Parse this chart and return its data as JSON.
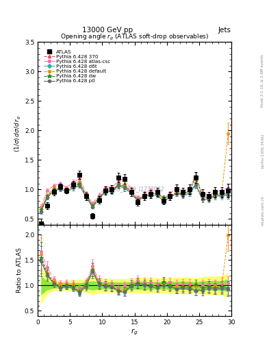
{
  "title": "13000 GeV pp",
  "title_right": "Jets",
  "plot_title": "Opening angle $r_g$ (ATLAS soft-drop observables)",
  "ylabel_main": "(1/σ) dσ/d r_{g}",
  "ylabel_ratio": "Ratio to ATLAS",
  "xlabel": "r_{g}",
  "watermark": "ATLAS_2019_I1772062",
  "rivet_label": "Rivet 3.1.10, ≥ 2.6M events",
  "arxiv_label": "[arXiv:1306.3436]",
  "mcplots_label": "mcplots.cern.ch",
  "xlim": [
    0,
    30
  ],
  "ylim_main": [
    0.4,
    3.5
  ],
  "ylim_ratio": [
    0.4,
    2.2
  ],
  "x_ticks": [
    0,
    5,
    10,
    15,
    20,
    25,
    30
  ],
  "series": {
    "ATLAS": {
      "x": [
        0.5,
        1.5,
        2.5,
        3.5,
        4.5,
        5.5,
        6.5,
        7.5,
        8.5,
        9.5,
        10.5,
        11.5,
        12.5,
        13.5,
        14.5,
        15.5,
        16.5,
        17.5,
        18.5,
        19.5,
        20.5,
        21.5,
        22.5,
        23.5,
        24.5,
        25.5,
        26.5,
        27.5,
        28.5,
        29.5
      ],
      "y": [
        0.42,
        0.72,
        0.95,
        1.05,
        0.98,
        1.08,
        1.25,
        0.88,
        0.55,
        0.82,
        0.98,
        1.0,
        1.2,
        1.18,
        0.95,
        0.78,
        0.88,
        0.92,
        0.95,
        0.8,
        0.88,
        1.0,
        0.95,
        1.0,
        1.2,
        0.92,
        0.88,
        0.95,
        0.95,
        0.98
      ],
      "yerr": [
        0.08,
        0.06,
        0.05,
        0.05,
        0.05,
        0.06,
        0.07,
        0.06,
        0.05,
        0.06,
        0.07,
        0.07,
        0.08,
        0.08,
        0.07,
        0.06,
        0.07,
        0.07,
        0.07,
        0.06,
        0.07,
        0.08,
        0.08,
        0.08,
        0.09,
        0.08,
        0.08,
        0.09,
        0.09,
        0.12
      ],
      "color": "#000000",
      "marker": "s",
      "markersize": 4,
      "linestyle": "none",
      "label": "ATLAS"
    },
    "Pythia 6.428 370": {
      "x": [
        0.5,
        1.5,
        2.5,
        3.5,
        4.5,
        5.5,
        6.5,
        7.5,
        8.5,
        9.5,
        10.5,
        11.5,
        12.5,
        13.5,
        14.5,
        15.5,
        16.5,
        17.5,
        18.5,
        19.5,
        20.5,
        21.5,
        22.5,
        23.5,
        24.5,
        25.5,
        26.5,
        27.5,
        28.5,
        29.5
      ],
      "y": [
        0.65,
        0.88,
        1.0,
        1.02,
        0.98,
        1.05,
        1.1,
        0.9,
        0.72,
        0.86,
        0.98,
        0.98,
        1.08,
        1.05,
        0.96,
        0.82,
        0.9,
        0.93,
        0.93,
        0.85,
        0.88,
        0.95,
        0.93,
        0.96,
        1.08,
        0.86,
        0.86,
        0.9,
        0.9,
        0.93
      ],
      "yerr": [
        0.04,
        0.03,
        0.03,
        0.03,
        0.03,
        0.04,
        0.04,
        0.03,
        0.03,
        0.04,
        0.04,
        0.04,
        0.05,
        0.05,
        0.04,
        0.04,
        0.04,
        0.04,
        0.04,
        0.04,
        0.04,
        0.05,
        0.05,
        0.05,
        0.05,
        0.05,
        0.05,
        0.05,
        0.05,
        0.06
      ],
      "color": "#e8474c",
      "marker": "^",
      "markersize": 3,
      "linestyle": "--",
      "label": "Pythia 6.428 370"
    },
    "Pythia 6.428 atlas-csc": {
      "x": [
        0.5,
        1.5,
        2.5,
        3.5,
        4.5,
        5.5,
        6.5,
        7.5,
        8.5,
        9.5,
        10.5,
        11.5,
        12.5,
        13.5,
        14.5,
        15.5,
        16.5,
        17.5,
        18.5,
        19.5,
        20.5,
        21.5,
        22.5,
        23.5,
        24.5,
        25.5,
        26.5,
        27.5,
        28.5,
        29.5
      ],
      "y": [
        0.7,
        0.98,
        1.06,
        1.1,
        1.03,
        1.12,
        1.18,
        0.93,
        0.76,
        0.9,
        1.02,
        1.02,
        1.15,
        1.18,
        1.0,
        0.86,
        0.93,
        0.98,
        0.98,
        0.83,
        0.93,
        1.02,
        0.98,
        1.03,
        1.22,
        0.93,
        0.9,
        0.96,
        0.98,
        1.02
      ],
      "yerr": [
        0.04,
        0.03,
        0.03,
        0.03,
        0.03,
        0.04,
        0.04,
        0.04,
        0.03,
        0.04,
        0.04,
        0.04,
        0.05,
        0.05,
        0.04,
        0.04,
        0.04,
        0.04,
        0.04,
        0.04,
        0.04,
        0.05,
        0.05,
        0.05,
        0.06,
        0.05,
        0.05,
        0.05,
        0.06,
        0.06
      ],
      "color": "#ff69b4",
      "marker": "o",
      "markersize": 3,
      "linestyle": "-.",
      "label": "Pythia 6.428 atlas-csc"
    },
    "Pythia 6.428 d6t": {
      "x": [
        0.5,
        1.5,
        2.5,
        3.5,
        4.5,
        5.5,
        6.5,
        7.5,
        8.5,
        9.5,
        10.5,
        11.5,
        12.5,
        13.5,
        14.5,
        15.5,
        16.5,
        17.5,
        18.5,
        19.5,
        20.5,
        21.5,
        22.5,
        23.5,
        24.5,
        25.5,
        26.5,
        27.5,
        28.5,
        29.5
      ],
      "y": [
        0.62,
        0.86,
        0.98,
        1.0,
        0.96,
        1.02,
        1.08,
        0.88,
        0.7,
        0.83,
        0.96,
        0.96,
        1.06,
        1.02,
        0.93,
        0.8,
        0.88,
        0.9,
        0.9,
        0.8,
        0.86,
        0.93,
        0.9,
        0.93,
        1.06,
        0.83,
        0.83,
        0.88,
        0.88,
        0.9
      ],
      "yerr": [
        0.04,
        0.03,
        0.03,
        0.03,
        0.03,
        0.04,
        0.04,
        0.03,
        0.03,
        0.04,
        0.04,
        0.04,
        0.05,
        0.05,
        0.04,
        0.04,
        0.04,
        0.04,
        0.04,
        0.04,
        0.04,
        0.05,
        0.05,
        0.05,
        0.05,
        0.05,
        0.05,
        0.05,
        0.05,
        0.06
      ],
      "color": "#20b2aa",
      "marker": "D",
      "markersize": 3,
      "linestyle": "--",
      "label": "Pythia 6.428 d6t"
    },
    "Pythia 6.428 default": {
      "x": [
        0.5,
        1.5,
        2.5,
        3.5,
        4.5,
        5.5,
        6.5,
        7.5,
        8.5,
        9.5,
        10.5,
        11.5,
        12.5,
        13.5,
        14.5,
        15.5,
        16.5,
        17.5,
        18.5,
        19.5,
        20.5,
        21.5,
        22.5,
        23.5,
        24.5,
        25.5,
        26.5,
        27.5,
        28.5,
        29.5
      ],
      "y": [
        0.68,
        0.9,
        1.03,
        1.06,
        1.0,
        1.08,
        1.13,
        0.9,
        0.73,
        0.86,
        0.98,
        0.98,
        1.1,
        1.08,
        0.96,
        0.83,
        0.9,
        0.93,
        0.93,
        0.83,
        0.88,
        0.96,
        0.93,
        0.98,
        1.18,
        0.88,
        0.86,
        0.93,
        0.93,
        1.95
      ],
      "yerr": [
        0.04,
        0.03,
        0.03,
        0.03,
        0.03,
        0.04,
        0.04,
        0.04,
        0.03,
        0.04,
        0.04,
        0.04,
        0.05,
        0.05,
        0.04,
        0.04,
        0.04,
        0.04,
        0.04,
        0.04,
        0.04,
        0.05,
        0.05,
        0.05,
        0.06,
        0.05,
        0.05,
        0.05,
        0.06,
        0.18
      ],
      "color": "#ff8c00",
      "marker": "o",
      "markersize": 3,
      "linestyle": "--",
      "label": "Pythia 6.428 default"
    },
    "Pythia 6.428 dw": {
      "x": [
        0.5,
        1.5,
        2.5,
        3.5,
        4.5,
        5.5,
        6.5,
        7.5,
        8.5,
        9.5,
        10.5,
        11.5,
        12.5,
        13.5,
        14.5,
        15.5,
        16.5,
        17.5,
        18.5,
        19.5,
        20.5,
        21.5,
        22.5,
        23.5,
        24.5,
        25.5,
        26.5,
        27.5,
        28.5,
        29.5
      ],
      "y": [
        0.65,
        0.88,
        1.0,
        1.02,
        0.98,
        1.05,
        1.1,
        0.9,
        0.72,
        0.86,
        0.98,
        0.98,
        1.08,
        1.05,
        0.96,
        0.82,
        0.9,
        0.93,
        0.93,
        0.86,
        0.88,
        0.93,
        0.93,
        0.96,
        1.22,
        0.88,
        0.86,
        0.9,
        0.93,
        0.93
      ],
      "yerr": [
        0.04,
        0.03,
        0.03,
        0.03,
        0.03,
        0.04,
        0.04,
        0.04,
        0.03,
        0.04,
        0.04,
        0.04,
        0.05,
        0.05,
        0.04,
        0.04,
        0.04,
        0.04,
        0.04,
        0.04,
        0.04,
        0.05,
        0.05,
        0.05,
        0.06,
        0.05,
        0.05,
        0.05,
        0.05,
        0.06
      ],
      "color": "#228b22",
      "marker": "*",
      "markersize": 4,
      "linestyle": "--",
      "label": "Pythia 6.428 dw"
    },
    "Pythia 6.428 p0": {
      "x": [
        0.5,
        1.5,
        2.5,
        3.5,
        4.5,
        5.5,
        6.5,
        7.5,
        8.5,
        9.5,
        10.5,
        11.5,
        12.5,
        13.5,
        14.5,
        15.5,
        16.5,
        17.5,
        18.5,
        19.5,
        20.5,
        21.5,
        22.5,
        23.5,
        24.5,
        25.5,
        26.5,
        27.5,
        28.5,
        29.5
      ],
      "y": [
        0.62,
        0.86,
        0.98,
        1.0,
        0.96,
        1.02,
        1.06,
        0.86,
        0.7,
        0.83,
        0.96,
        0.96,
        1.06,
        1.02,
        0.93,
        0.8,
        0.88,
        0.9,
        0.9,
        0.8,
        0.86,
        0.93,
        0.9,
        0.93,
        1.08,
        0.83,
        0.83,
        0.88,
        0.9,
        0.9
      ],
      "yerr": [
        0.04,
        0.03,
        0.03,
        0.03,
        0.03,
        0.04,
        0.04,
        0.03,
        0.03,
        0.04,
        0.04,
        0.04,
        0.05,
        0.05,
        0.04,
        0.04,
        0.04,
        0.04,
        0.04,
        0.04,
        0.04,
        0.05,
        0.05,
        0.05,
        0.05,
        0.05,
        0.05,
        0.05,
        0.05,
        0.06
      ],
      "color": "#696969",
      "marker": "o",
      "markersize": 3,
      "linestyle": "-",
      "label": "Pythia 6.428 p0"
    }
  }
}
